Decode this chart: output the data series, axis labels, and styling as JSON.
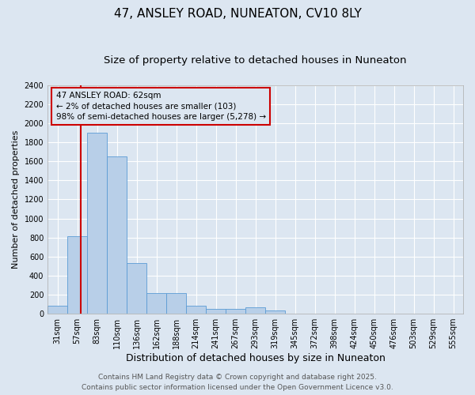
{
  "title": "47, ANSLEY ROAD, NUNEATON, CV10 8LY",
  "subtitle": "Size of property relative to detached houses in Nuneaton",
  "xlabel": "Distribution of detached houses by size in Nuneaton",
  "ylabel": "Number of detached properties",
  "categories": [
    "31sqm",
    "57sqm",
    "83sqm",
    "110sqm",
    "136sqm",
    "162sqm",
    "188sqm",
    "214sqm",
    "241sqm",
    "267sqm",
    "293sqm",
    "319sqm",
    "345sqm",
    "372sqm",
    "398sqm",
    "424sqm",
    "450sqm",
    "476sqm",
    "503sqm",
    "529sqm",
    "555sqm"
  ],
  "values": [
    80,
    810,
    1900,
    1650,
    530,
    220,
    220,
    80,
    50,
    50,
    70,
    30,
    0,
    0,
    0,
    0,
    0,
    0,
    0,
    0,
    0
  ],
  "bar_color": "#b8cfe8",
  "bar_edge_color": "#5b9bd5",
  "background_color": "#dce6f1",
  "grid_color": "#ffffff",
  "vline_color": "#cc0000",
  "annotation_line1": "47 ANSLEY ROAD: 62sqm",
  "annotation_line2": "← 2% of detached houses are smaller (103)",
  "annotation_line3": "98% of semi-detached houses are larger (5,278) →",
  "annotation_box_color": "#cc0000",
  "ylim": [
    0,
    2400
  ],
  "yticks": [
    0,
    200,
    400,
    600,
    800,
    1000,
    1200,
    1400,
    1600,
    1800,
    2000,
    2200,
    2400
  ],
  "footer1": "Contains HM Land Registry data © Crown copyright and database right 2025.",
  "footer2": "Contains public sector information licensed under the Open Government Licence v3.0.",
  "title_fontsize": 11,
  "subtitle_fontsize": 9.5,
  "xlabel_fontsize": 9,
  "ylabel_fontsize": 8,
  "tick_fontsize": 7,
  "annotation_fontsize": 7.5,
  "footer_fontsize": 6.5
}
